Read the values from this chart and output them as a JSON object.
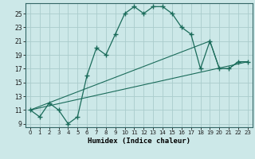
{
  "xlabel": "Humidex (Indice chaleur)",
  "bg_color": "#cce8e8",
  "grid_color": "#aacccc",
  "line_color": "#1a6b5a",
  "xlim": [
    -0.5,
    23.5
  ],
  "ylim": [
    8.5,
    26.5
  ],
  "xticks": [
    0,
    1,
    2,
    3,
    4,
    5,
    6,
    7,
    8,
    9,
    10,
    11,
    12,
    13,
    14,
    15,
    16,
    17,
    18,
    19,
    20,
    21,
    22,
    23
  ],
  "yticks": [
    9,
    11,
    13,
    15,
    17,
    19,
    21,
    23,
    25
  ],
  "line1_x": [
    0,
    1,
    2,
    3,
    4,
    5,
    6,
    7,
    8,
    9,
    10,
    11,
    12,
    13,
    14,
    15,
    16,
    17,
    18,
    19,
    20,
    21,
    22,
    23
  ],
  "line1_y": [
    11,
    10,
    12,
    11,
    9,
    10,
    16,
    20,
    19,
    22,
    25,
    26,
    25,
    26,
    26,
    25,
    23,
    22,
    17,
    21,
    17,
    17,
    18,
    18
  ],
  "line2_x": [
    0,
    23
  ],
  "line2_y": [
    11,
    18
  ],
  "line3_x": [
    0,
    19,
    20,
    21,
    22,
    23
  ],
  "line3_y": [
    11,
    21,
    17,
    17,
    18,
    18
  ]
}
